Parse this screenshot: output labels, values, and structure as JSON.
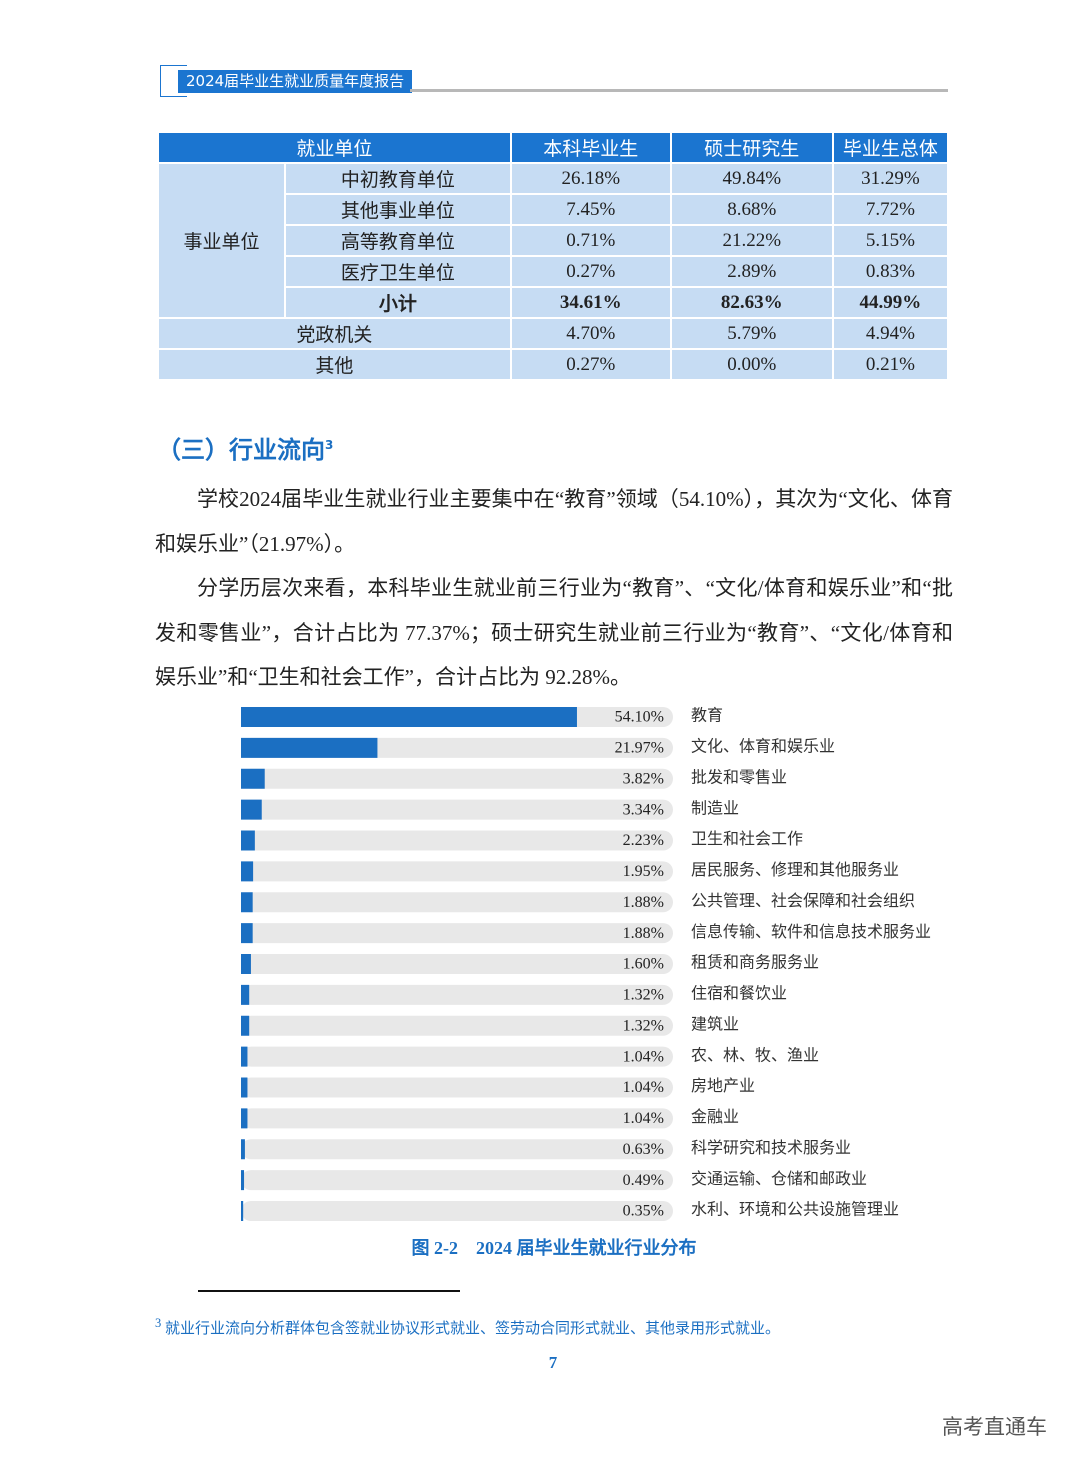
{
  "header": {
    "title": "2024届毕业生就业质量年度报告"
  },
  "table": {
    "header": [
      "就业单位",
      "本科毕业生",
      "硕士研究生",
      "毕业生总体"
    ],
    "group": "事业单位",
    "rows": [
      [
        "中初教育单位",
        "26.18%",
        "49.84%",
        "31.29%"
      ],
      [
        "其他事业单位",
        "7.45%",
        "8.68%",
        "7.72%"
      ],
      [
        "高等教育单位",
        "0.71%",
        "21.22%",
        "5.15%"
      ],
      [
        "医疗卫生单位",
        "0.27%",
        "2.89%",
        "0.83%"
      ],
      [
        "小计",
        "34.61%",
        "82.63%",
        "44.99%"
      ],
      [
        "党政机关",
        "4.70%",
        "5.79%",
        "4.94%"
      ],
      [
        "其他",
        "0.27%",
        "0.00%",
        "0.21%"
      ]
    ]
  },
  "section": {
    "title": "（三）行业流向",
    "footnote_mark": "3"
  },
  "paragraphs": [
    "学校2024届毕业生就业行业主要集中在“教育”领域（54.10%），其次为“文化、体育和娱乐业”（21.97%）。",
    "分学历层次来看，本科毕业生就业前三行业为“教育”、“文化/体育和娱乐业”和“批发和零售业”，合计占比为 77.37%；硕士研究生就业前三行业为“教育”、“文化/体育和娱乐业”和“卫生和社会工作”，合计占比为 92.28%。"
  ],
  "chart_data": {
    "type": "bar",
    "orientation": "horizontal",
    "title": "图 2-2　2024 届毕业生就业行业分布",
    "color": "#1b6fc2",
    "categories": [
      "教育",
      "文化、体育和娱乐业",
      "批发和零售业",
      "制造业",
      "卫生和社会工作",
      "居民服务、修理和其他服务业",
      "公共管理、社会保障和社会组织",
      "信息传输、软件和信息技术服务业",
      "租赁和商务服务业",
      "住宿和餐饮业",
      "建筑业",
      "农、林、牧、渔业",
      "房地产业",
      "金融业",
      "科学研究和技术服务业",
      "交通运输、仓储和邮政业",
      "水利、环境和公共设施管理业"
    ],
    "values": [
      54.1,
      21.97,
      3.82,
      3.34,
      2.23,
      1.95,
      1.88,
      1.88,
      1.6,
      1.32,
      1.32,
      1.04,
      1.04,
      1.04,
      0.63,
      0.49,
      0.35
    ],
    "value_labels": [
      "54.10%",
      "21.97%",
      "3.82%",
      "3.34%",
      "2.23%",
      "1.95%",
      "1.88%",
      "1.88%",
      "1.60%",
      "1.32%",
      "1.32%",
      "1.04%",
      "1.04%",
      "1.04%",
      "0.63%",
      "0.49%",
      "0.35%"
    ]
  },
  "footnote": {
    "mark": "3",
    "text": "就业行业流向分析群体包含签就业协议形式就业、签劳动合同形式就业、其他录用形式就业。"
  },
  "page_number": "7",
  "watermark": "高考直通车"
}
